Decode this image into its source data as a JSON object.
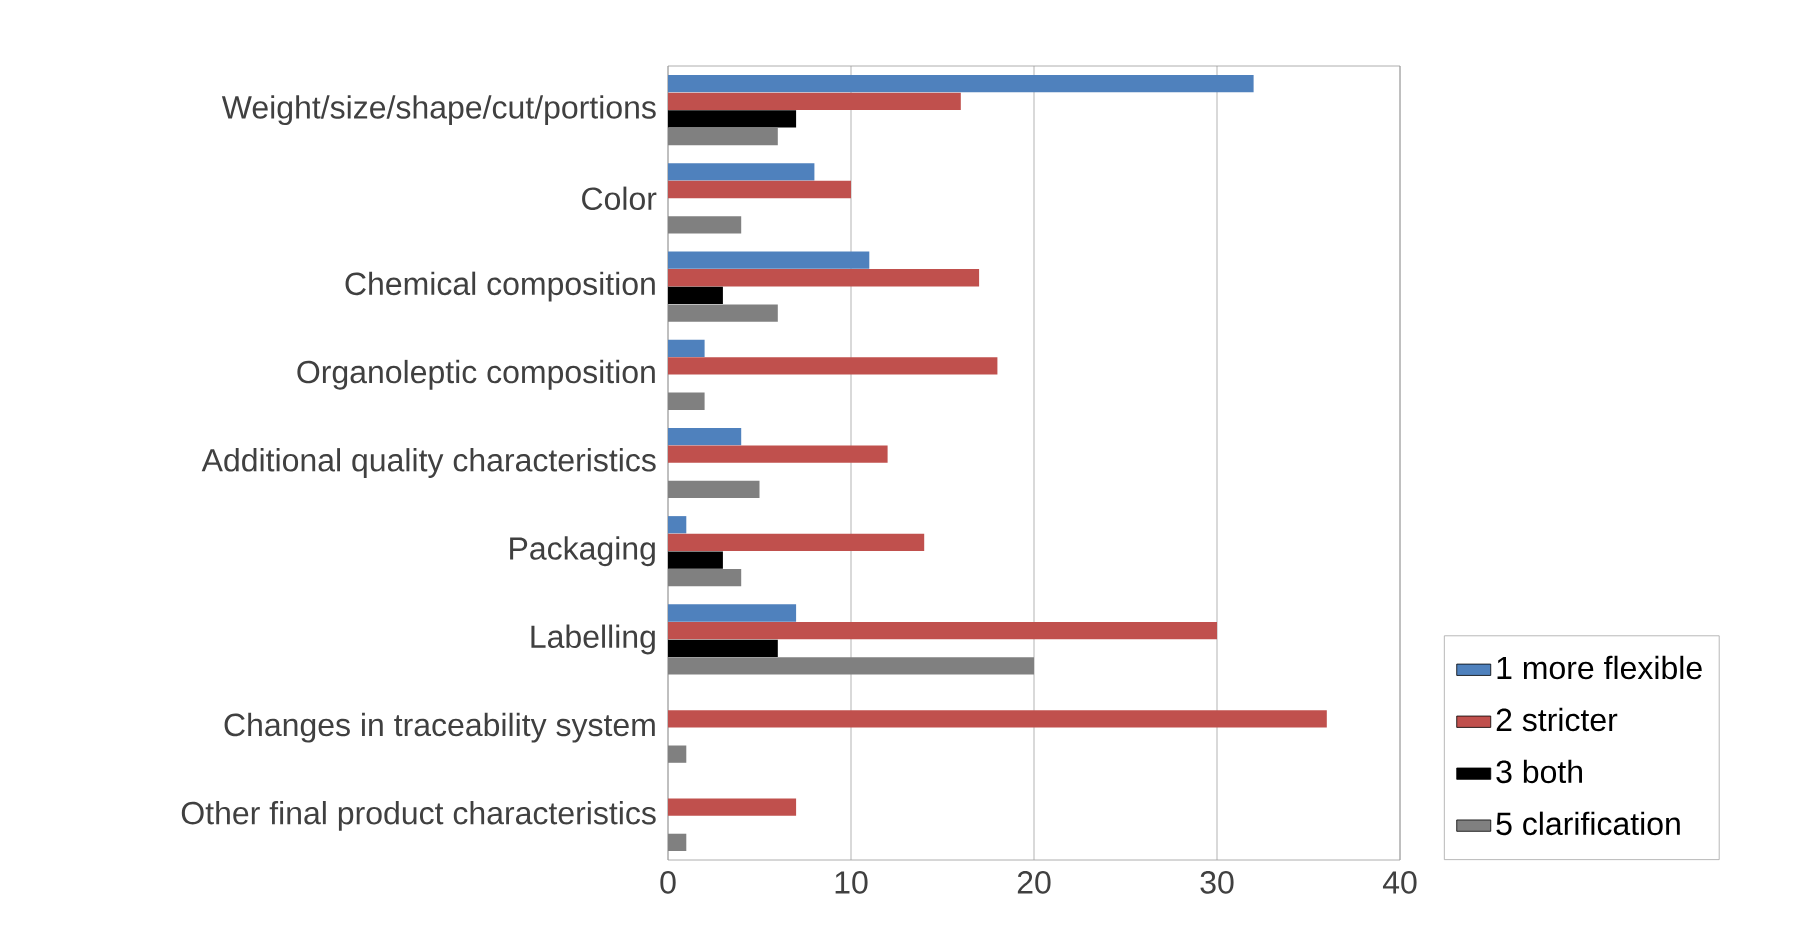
{
  "chart_data": {
    "type": "bar",
    "orientation": "horizontal",
    "categories": [
      "Weight/size/shape/cut/portions",
      "Color",
      "Chemical composition",
      "Organoleptic composition",
      "Additional quality characteristics",
      "Packaging",
      "Labelling",
      "Changes in traceability system",
      "Other final product characteristics"
    ],
    "series": [
      {
        "name": "1 more flexible",
        "color": "#4f81bd",
        "values": [
          32,
          8,
          11,
          2,
          4,
          1,
          7,
          0,
          0
        ]
      },
      {
        "name": "2 stricter",
        "color": "#c0504d",
        "values": [
          16,
          10,
          17,
          18,
          12,
          14,
          30,
          36,
          7
        ]
      },
      {
        "name": "3 both",
        "color": "#000000",
        "values": [
          7,
          0,
          3,
          0,
          0,
          3,
          6,
          0,
          0
        ]
      },
      {
        "name": "5 clarification",
        "color": "#808080",
        "values": [
          6,
          4,
          6,
          2,
          5,
          4,
          20,
          1,
          1
        ]
      }
    ],
    "xlim": [
      0,
      40
    ],
    "xticks": [
      0,
      10,
      20,
      30,
      40
    ],
    "grid": "x",
    "legend": "right"
  }
}
